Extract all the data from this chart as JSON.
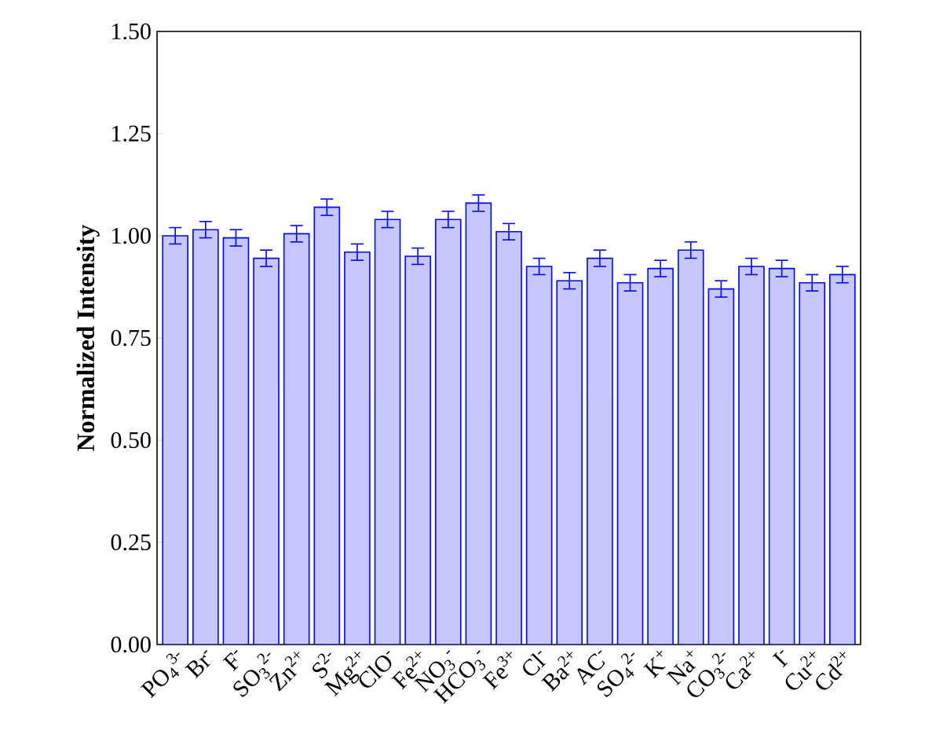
{
  "chart_data": {
    "type": "bar",
    "ylabel": "Normalized Intensity",
    "categories": [
      "PO$_{4}$$^{3-}$",
      "Br$^{-}$",
      "F$^{-}$",
      "SO$_{3}$$^{2-}$",
      "Zn$^{2+}$",
      "S$^{2-}$",
      "Mg$^{2+}$",
      "ClO$^{-}$",
      "Fe$^{2+}$",
      "NO$_{3}$$^{-}$",
      "HCO$_{3}$$^{-}$",
      "Fe$^{3+}$",
      "Cl$^{-}$",
      "Ba$^{2+}$",
      "AC$^{-}$",
      "SO$_{4}$$^{2-}$",
      "K$^{+}$",
      "Na$^{+}$",
      "CO$_{3}$$^{2-}$",
      "Ca$^{2+}$",
      "I$^{-}$",
      "Cu$^{2+}$",
      "Cd$^{2+}$"
    ],
    "values": [
      1.0,
      1.015,
      0.995,
      0.945,
      1.005,
      1.07,
      0.96,
      1.04,
      0.95,
      1.04,
      1.08,
      1.01,
      0.925,
      0.89,
      0.945,
      0.885,
      0.92,
      0.965,
      0.87,
      0.925,
      0.92,
      0.885,
      0.905
    ],
    "errors": [
      0.02,
      0.02,
      0.02,
      0.02,
      0.02,
      0.02,
      0.02,
      0.02,
      0.02,
      0.02,
      0.02,
      0.02,
      0.02,
      0.02,
      0.02,
      0.02,
      0.02,
      0.02,
      0.02,
      0.02,
      0.02,
      0.02,
      0.02
    ],
    "color": "#c7c7ff",
    "ylim": [
      0,
      1.5
    ],
    "yticks": [
      {
        "value": 0,
        "label": "0.00"
      },
      {
        "value": 0.25,
        "label": "0.25"
      },
      {
        "value": 0.5,
        "label": "0.50"
      },
      {
        "value": 0.75,
        "label": "0.75"
      },
      {
        "value": 1.0,
        "label": "1.00"
      },
      {
        "value": 1.25,
        "label": "1.25"
      },
      {
        "value": 1.5,
        "label": "1.50"
      }
    ],
    "grid": false
  }
}
